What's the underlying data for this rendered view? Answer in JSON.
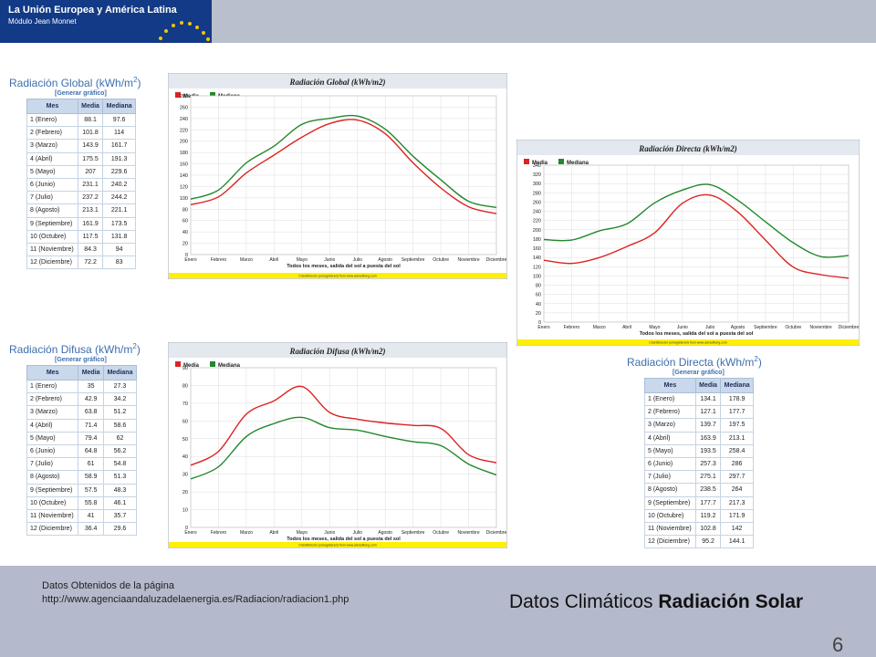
{
  "header": {
    "logo_line1": "La Unión Europea y América Latina",
    "logo_line2": "Módulo Jean Monnet"
  },
  "footer": {
    "source_line1": "Datos Obtenidos de la página",
    "source_line2": "http://www.agenciaandaluzadelaenergia.es/Radiacion/radiacion1.php",
    "title_normal": "Datos Climáticos ",
    "title_bold": "Radiación Solar",
    "page_number": "6"
  },
  "tables": [
    {
      "title": "Radiación Global (kWh/m",
      "sup": "2",
      "close": ")",
      "link": "[Generar gráfico]",
      "headers": [
        "Mes",
        "Media",
        "Mediana"
      ],
      "rows": [
        [
          "1 (Enero)",
          "88.1",
          "97.6"
        ],
        [
          "2 (Febrero)",
          "101.8",
          "114"
        ],
        [
          "3 (Marzo)",
          "143.9",
          "161.7"
        ],
        [
          "4 (Abril)",
          "175.5",
          "191.3"
        ],
        [
          "5 (Mayo)",
          "207",
          "229.6"
        ],
        [
          "6 (Junio)",
          "231.1",
          "240.2"
        ],
        [
          "7 (Julio)",
          "237.2",
          "244.2"
        ],
        [
          "8 (Agosto)",
          "213.1",
          "221.1"
        ],
        [
          "9 (Septiembre)",
          "161.9",
          "173.5"
        ],
        [
          "10 (Octubre)",
          "117.5",
          "131.8"
        ],
        [
          "11 (Noviembre)",
          "84.3",
          "94"
        ],
        [
          "12 (Diciembre)",
          "72.2",
          "83"
        ]
      ]
    },
    {
      "title": "Radiación Difusa (kWh/m",
      "sup": "2",
      "close": ")",
      "link": "[Generar gráfico]",
      "headers": [
        "Mes",
        "Media",
        "Mediana"
      ],
      "rows": [
        [
          "1 (Enero)",
          "35",
          "27.3"
        ],
        [
          "2 (Febrero)",
          "42.9",
          "34.2"
        ],
        [
          "3 (Marzo)",
          "63.8",
          "51.2"
        ],
        [
          "4 (Abril)",
          "71.4",
          "58.6"
        ],
        [
          "5 (Mayo)",
          "79.4",
          "62"
        ],
        [
          "6 (Junio)",
          "64.8",
          "56.2"
        ],
        [
          "7 (Julio)",
          "61",
          "54.8"
        ],
        [
          "8 (Agosto)",
          "58.9",
          "51.3"
        ],
        [
          "9 (Septiembre)",
          "57.5",
          "48.3"
        ],
        [
          "10 (Octubre)",
          "55.8",
          "46.1"
        ],
        [
          "11 (Noviembre)",
          "41",
          "35.7"
        ],
        [
          "12 (Diciembre)",
          "36.4",
          "29.6"
        ]
      ]
    },
    {
      "title": "Radiación Directa (kWh/m",
      "sup": "2",
      "close": ")",
      "link": "[Generar gráfico]",
      "headers": [
        "Mes",
        "Media",
        "Mediana"
      ],
      "rows": [
        [
          "1 (Enero)",
          "134.1",
          "178.9"
        ],
        [
          "2 (Febrero)",
          "127.1",
          "177.7"
        ],
        [
          "3 (Marzo)",
          "139.7",
          "197.5"
        ],
        [
          "4 (Abril)",
          "163.9",
          "213.1"
        ],
        [
          "5 (Mayo)",
          "193.5",
          "258.4"
        ],
        [
          "6 (Junio)",
          "257.3",
          "286"
        ],
        [
          "7 (Julio)",
          "275.1",
          "297.7"
        ],
        [
          "8 (Agosto)",
          "238.5",
          "264"
        ],
        [
          "9 (Septiembre)",
          "177.7",
          "217.3"
        ],
        [
          "10 (Octubre)",
          "119.2",
          "171.9"
        ],
        [
          "11 (Noviembre)",
          "102.8",
          "142"
        ],
        [
          "12 (Diciembre)",
          "95.2",
          "144.1"
        ]
      ]
    }
  ],
  "chart_data": [
    {
      "type": "line",
      "title": "Radiación Global (kWh/m2)",
      "xlabel": "Todos los meses, salida del sol a puesta del sol",
      "footnote": "ChartDirector (unregistered) from www.advsofteng.com",
      "categories": [
        "Enero",
        "Febrero",
        "Marzo",
        "Abril",
        "Mayo",
        "Junio",
        "Julio",
        "Agosto",
        "Septiembre",
        "Octubre",
        "Noviembre",
        "Diciembre"
      ],
      "ylim": [
        0,
        280
      ],
      "ystep": 20,
      "legend": "top-left",
      "series": [
        {
          "name": "Media",
          "color": "#dd2222",
          "values": [
            88.1,
            101.8,
            143.9,
            175.5,
            207,
            231.1,
            237.2,
            213.1,
            161.9,
            117.5,
            84.3,
            72.2
          ]
        },
        {
          "name": "Mediana",
          "color": "#22882c",
          "values": [
            97.6,
            114,
            161.7,
            191.3,
            229.6,
            240.2,
            244.2,
            221.1,
            173.5,
            131.8,
            94,
            83
          ]
        }
      ]
    },
    {
      "type": "line",
      "title": "Radiación Difusa (kWh/m2)",
      "xlabel": "Todos los meses, salida del sol a puesta del sol",
      "footnote": "ChartDirector (unregistered) from www.advsofteng.com",
      "categories": [
        "Enero",
        "Febrero",
        "Marzo",
        "Abril",
        "Mayo",
        "Junio",
        "Julio",
        "Agosto",
        "Septiembre",
        "Octubre",
        "Noviembre",
        "Diciembre"
      ],
      "ylim": [
        0,
        90
      ],
      "ystep": 10,
      "legend": "top-left",
      "series": [
        {
          "name": "Media",
          "color": "#dd2222",
          "values": [
            35,
            42.9,
            63.8,
            71.4,
            79.4,
            64.8,
            61,
            58.9,
            57.5,
            55.8,
            41,
            36.4
          ]
        },
        {
          "name": "Mediana",
          "color": "#22882c",
          "values": [
            27.3,
            34.2,
            51.2,
            58.6,
            62,
            56.2,
            54.8,
            51.3,
            48.3,
            46.1,
            35.7,
            29.6
          ]
        }
      ]
    },
    {
      "type": "line",
      "title": "Radiación Directa (kWh/m2)",
      "xlabel": "Todos los meses, salida del sol a puesta del sol",
      "footnote": "ChartDirector (unregistered) from www.advsofteng.com",
      "categories": [
        "Enero",
        "Febrero",
        "Marzo",
        "Abril",
        "Mayo",
        "Junio",
        "Julio",
        "Agosto",
        "Septiembre",
        "Octubre",
        "Noviembre",
        "Diciembre"
      ],
      "ylim": [
        0,
        340
      ],
      "ystep": 20,
      "legend": "top-left",
      "series": [
        {
          "name": "Media",
          "color": "#dd2222",
          "values": [
            134.1,
            127.1,
            139.7,
            163.9,
            193.5,
            257.3,
            275.1,
            238.5,
            177.7,
            119.2,
            102.8,
            95.2
          ]
        },
        {
          "name": "Mediana",
          "color": "#22882c",
          "values": [
            178.9,
            177.7,
            197.5,
            213.1,
            258.4,
            286,
            297.7,
            264,
            217.3,
            171.9,
            142,
            144.1
          ]
        }
      ]
    }
  ]
}
